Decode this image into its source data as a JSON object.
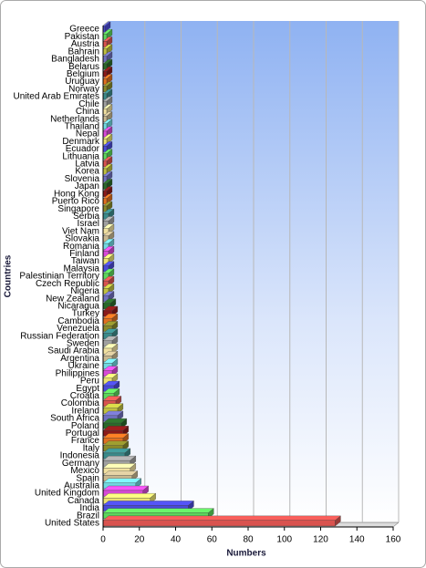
{
  "chart_data": {
    "type": "bar3d",
    "orientation": "horizontal",
    "x_label": "Numbers",
    "y_label": "Countries",
    "categories": [
      "Greece",
      "Pakistan",
      "Austria",
      "Bahrain",
      "Bangladesh",
      "Belarus",
      "Belgium",
      "Uruguay",
      "Norway",
      "United Arab Emirates",
      "Chile",
      "China",
      "Netherlands",
      "Thailand",
      "Nepal",
      "Denmark",
      "Ecuador",
      "Lithuania",
      "Latvia",
      "Korea",
      "Slovenia",
      "Japan",
      "Hong Kong",
      "Puerto Rico",
      "Singapore",
      "Serbia",
      "Israel",
      "Viet Nam",
      "Slovakia",
      "Romania",
      "Finland",
      "Taiwan",
      "Malaysia",
      "Palestinian Territory",
      "Czech Republic",
      "Nigeria",
      "New Zealand",
      "Nicaragua",
      "Turkey",
      "Cambodia",
      "Venezuela",
      "Russian Federation",
      "Sweden",
      "Saudi Arabia",
      "Argentina",
      "Ukraine",
      "Philippines",
      "Peru",
      "Egypt",
      "Croatia",
      "Colombia",
      "Ireland",
      "South Africa",
      "Poland",
      "Portugal",
      "France",
      "Italy",
      "Indonesia",
      "Germany",
      "Mexico",
      "Spain",
      "Australia",
      "United Kingdom",
      "Canada",
      "India",
      "Brazil",
      "United States"
    ],
    "values": [
      1,
      2,
      2,
      2,
      2,
      2,
      2,
      2,
      2,
      2,
      2,
      2,
      2,
      2,
      2,
      2,
      2,
      2,
      2,
      2,
      2,
      2,
      2,
      2,
      2,
      3,
      3,
      3,
      3,
      3,
      3,
      3,
      3,
      3,
      3,
      3,
      3,
      4,
      5,
      5,
      5,
      5,
      5,
      5,
      5,
      5,
      5,
      5,
      6,
      6,
      7,
      8,
      8,
      10,
      11,
      11,
      11,
      12,
      15,
      15,
      16,
      18,
      22,
      26,
      47,
      58,
      128
    ],
    "palette": [
      "#d9534f",
      "#5cd65c",
      "#4a4ad8",
      "#e8e070",
      "#d84ad8",
      "#70d8e0",
      "#c8b890",
      "#f0e0a0",
      "#a0a0a0",
      "#3a8a8a",
      "#8a8a2a",
      "#e07020",
      "#8b1a1a",
      "#2a6a2a",
      "#7070c0",
      "#c0c040"
    ],
    "xlim": [
      0,
      160
    ],
    "xticks": [
      0,
      20,
      40,
      60,
      80,
      100,
      120,
      140,
      160
    ],
    "grid": true
  }
}
